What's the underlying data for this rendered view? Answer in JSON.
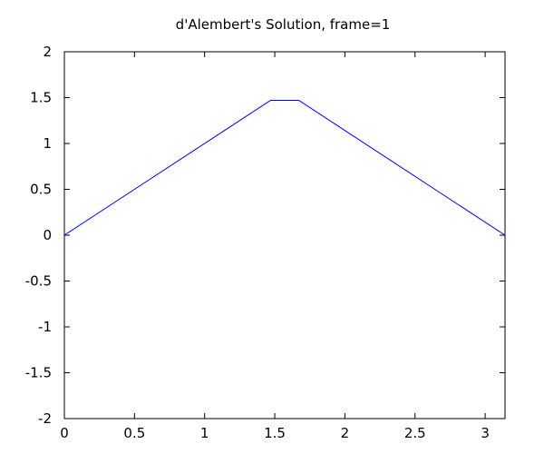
{
  "chart_data": {
    "type": "line",
    "title": "d'Alembert's Solution, frame=1",
    "xlabel": "",
    "ylabel": "",
    "xlim": [
      0,
      3.14159
    ],
    "ylim": [
      -2,
      2
    ],
    "x_ticks": [
      0,
      0.5,
      1,
      1.5,
      2,
      2.5,
      3
    ],
    "x_tick_labels": [
      "0",
      "0.5",
      "1",
      "1.5",
      "2",
      "2.5",
      "3"
    ],
    "y_ticks": [
      -2,
      -1.5,
      -1,
      -0.5,
      0,
      0.5,
      1,
      1.5,
      2
    ],
    "y_tick_labels": [
      "-2",
      "-1.5",
      "-1",
      "-0.5",
      "0",
      "0.5",
      "1",
      "1.5",
      "2"
    ],
    "grid": false,
    "legend": "none",
    "series": [
      {
        "color": "#0000ff",
        "x": [
          0,
          1.4708,
          1.6708,
          3.14159
        ],
        "y": [
          0,
          1.4708,
          1.4708,
          0
        ]
      }
    ]
  }
}
